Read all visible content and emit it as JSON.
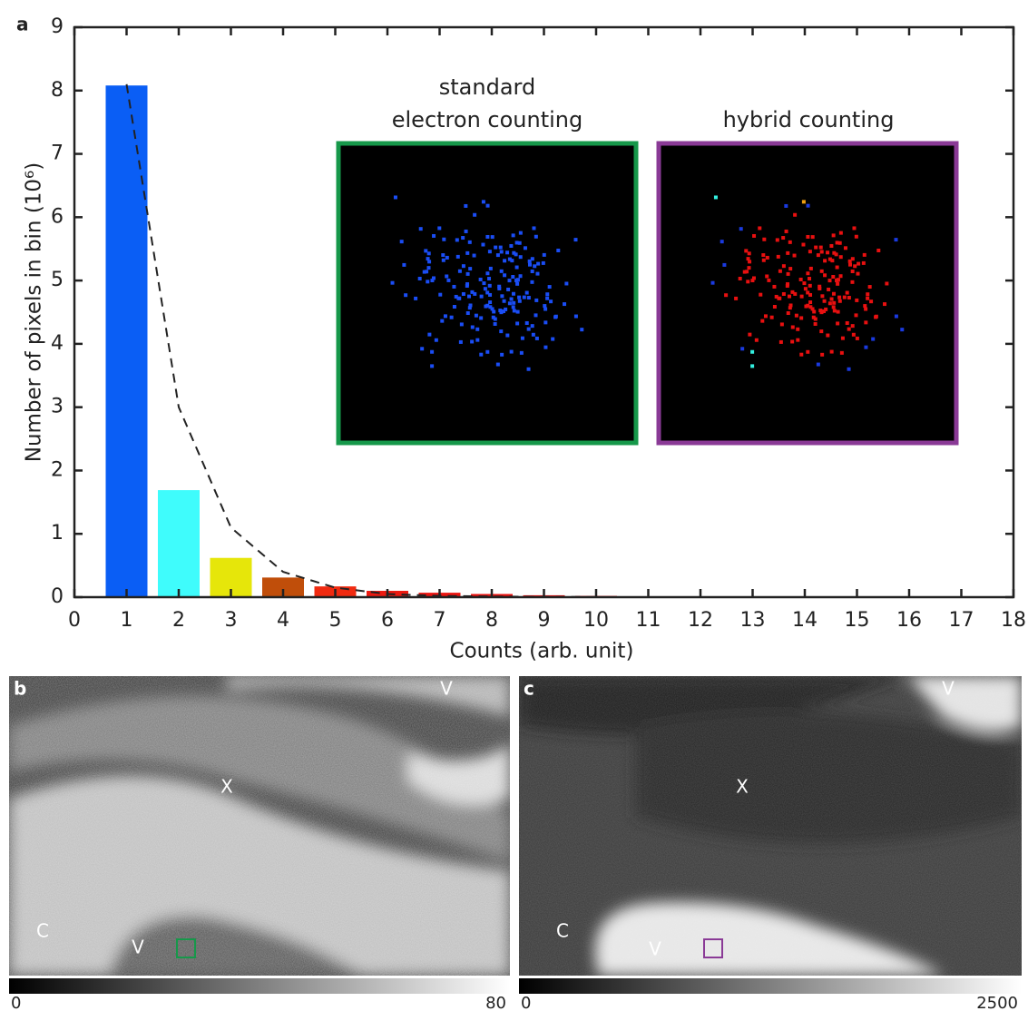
{
  "chart_data": {
    "type": "bar",
    "panel_label": "a",
    "xlabel": "Counts (arb. unit)",
    "ylabel": "Number of pixels in bin (10⁶)",
    "x": [
      1,
      2,
      3,
      4,
      5,
      6,
      7,
      8,
      9,
      10
    ],
    "values": [
      8.08,
      1.69,
      0.62,
      0.31,
      0.17,
      0.1,
      0.07,
      0.05,
      0.03,
      0.02
    ],
    "colors": [
      "#0a5ef5",
      "#3ffcfc",
      "#e6e60a",
      "#c04e0a",
      "#f02a10",
      "#ec1a10",
      "#ea1410",
      "#e81210",
      "#e61010",
      "#e41010"
    ],
    "lines": [
      {
        "x": [
          1,
          2,
          3,
          4,
          5,
          6,
          7,
          8,
          9,
          10
        ],
        "values": [
          8.1,
          3.0,
          1.1,
          0.4,
          0.15,
          0.05,
          0.02,
          0.01,
          0.005,
          0.002
        ],
        "color": "#222222",
        "style": "dashed"
      }
    ],
    "xlim": [
      0,
      18
    ],
    "xticks": [
      0,
      1,
      2,
      3,
      4,
      5,
      6,
      7,
      8,
      9,
      10,
      11,
      12,
      13,
      14,
      15,
      16,
      17,
      18
    ],
    "ylim": [
      0,
      9
    ],
    "yticks": [
      0,
      1,
      2,
      3,
      4,
      5,
      6,
      7,
      8,
      9
    ],
    "insets": [
      {
        "title": [
          "standard",
          "electron counting"
        ],
        "border": "#16984a"
      },
      {
        "title": [
          "hybrid counting"
        ],
        "border": "#8a3a96"
      }
    ]
  },
  "panels": [
    {
      "label": "b",
      "annotations": [
        "V",
        "X",
        "C",
        "V"
      ],
      "colorbar_ticks": [
        0,
        80
      ],
      "marker": "#16984a"
    },
    {
      "label": "c",
      "annotations": [
        "V",
        "X",
        "C",
        "V"
      ],
      "colorbar_ticks": [
        0,
        2500
      ],
      "marker": "#8a3a96"
    }
  ]
}
